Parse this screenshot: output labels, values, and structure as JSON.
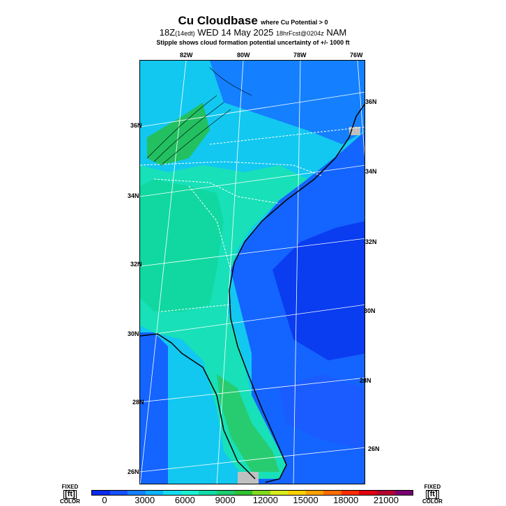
{
  "title": {
    "main": "Cu Cloudbase",
    "condition": "where Cu Potential > 0",
    "time": "18Z",
    "local": "(14edt)",
    "date": "WED 14 May 2025",
    "forecast": "18hrFcst@0204z",
    "model": "NAM",
    "note": "Stipple shows cloud formation potential uncertainty of +/- 1000 ft"
  },
  "map": {
    "top_labels": [
      "82W",
      "80W",
      "78W",
      "76W"
    ],
    "left_labels": [
      "36N",
      "34N",
      "32N",
      "30N",
      "28N",
      "26N"
    ],
    "right_labels": [
      "36N",
      "34N",
      "32N",
      "30N",
      "28N",
      "26N"
    ]
  },
  "colorbar": {
    "left_label": "FIXED",
    "right_label": "FIXED",
    "unit": "[ft]",
    "bottom_label": "COLOR",
    "ticks": [
      "0",
      "3000",
      "6000",
      "9000",
      "12000",
      "15000",
      "18000",
      "21000"
    ],
    "colors": [
      "#0a2af0",
      "#1650ff",
      "#1480ff",
      "#0ab4ff",
      "#14dcf0",
      "#18f0d0",
      "#10dca8",
      "#1ccc70",
      "#30c030",
      "#80d820",
      "#d8ec1c",
      "#ffd000",
      "#ffa000",
      "#ff6c00",
      "#ff2c00",
      "#e00010",
      "#b40030",
      "#7a0070"
    ]
  }
}
